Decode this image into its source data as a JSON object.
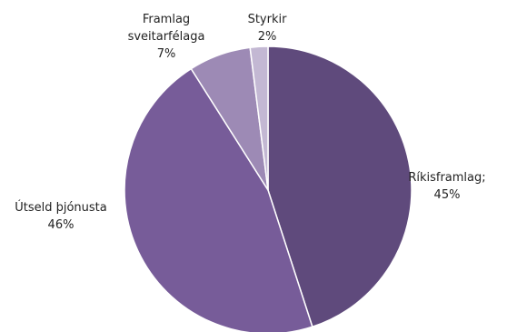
{
  "chart_data": {
    "type": "pie",
    "title": "",
    "start_angle_deg": 0,
    "direction": "clockwise",
    "slice_border_color": "#ffffff",
    "slices": [
      {
        "name": "Ríkisframlag;",
        "value": 45,
        "value_label": "45%",
        "color": "#5f4a7c"
      },
      {
        "name": "Útseld þjónusta",
        "value": 46,
        "value_label": "46%",
        "color": "#775c99"
      },
      {
        "name": "Framlag sveitarfélaga",
        "name_lines": [
          "Framlag",
          "sveitarfélaga"
        ],
        "value": 7,
        "value_label": "7%",
        "color": "#9d8ab5"
      },
      {
        "name": "Styrkir",
        "value": 2,
        "value_label": "2%",
        "color": "#c3b8d3"
      }
    ]
  }
}
